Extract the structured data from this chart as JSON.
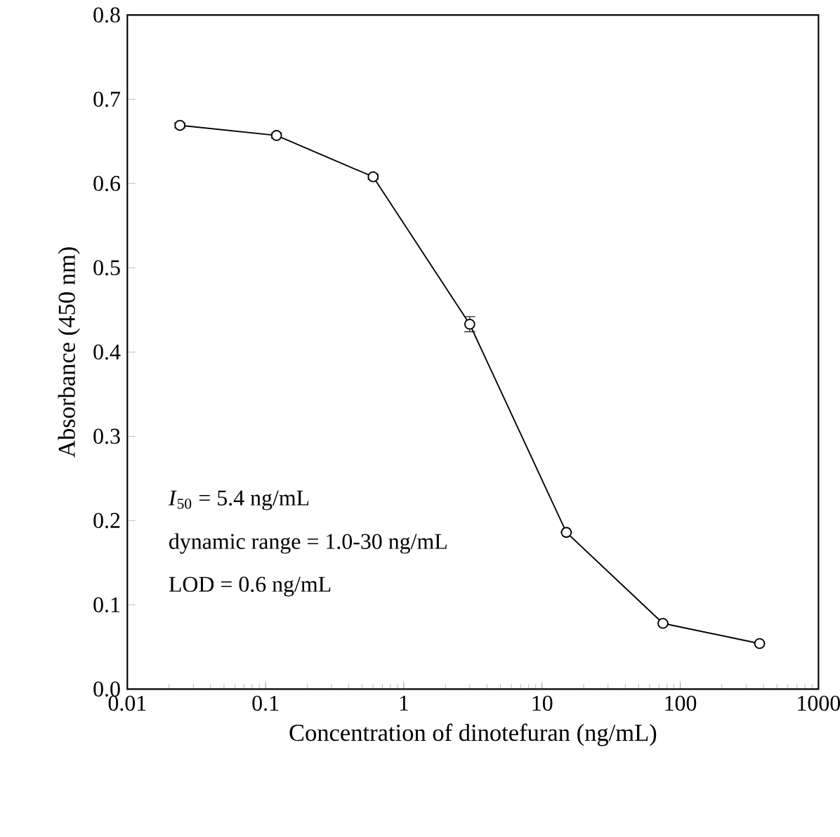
{
  "chart_data": {
    "type": "line",
    "xlabel": "Concentration of dinotefuran (ng/mL)",
    "ylabel": "Absorbance (450 nm)",
    "x": [
      0.024,
      0.12,
      0.6,
      3,
      15,
      75,
      375
    ],
    "values": [
      0.669,
      0.657,
      0.608,
      0.433,
      0.186,
      0.078,
      0.054
    ],
    "errors": [
      0.003,
      0.003,
      0.003,
      0.009,
      null,
      null,
      null
    ],
    "color": "#000000",
    "marker": "circle",
    "line_style": "solid",
    "log": "x",
    "xlim": [
      0.01,
      1000
    ],
    "xticks": [
      0.01,
      0.1,
      1,
      10,
      100,
      1000
    ],
    "ylim": [
      0,
      0.8
    ],
    "yticks": [
      {
        "value": 0,
        "label": "0.0"
      },
      0.1,
      0.2,
      0.3,
      0.4,
      0.5,
      0.6,
      0.7,
      0.8
    ],
    "annotations": [
      "*I*$_{50}$ = 5.4 ng/mL",
      "dynamic range = 1.0-30 ng/mL",
      "LOD = 0.6 ng/mL"
    ]
  }
}
